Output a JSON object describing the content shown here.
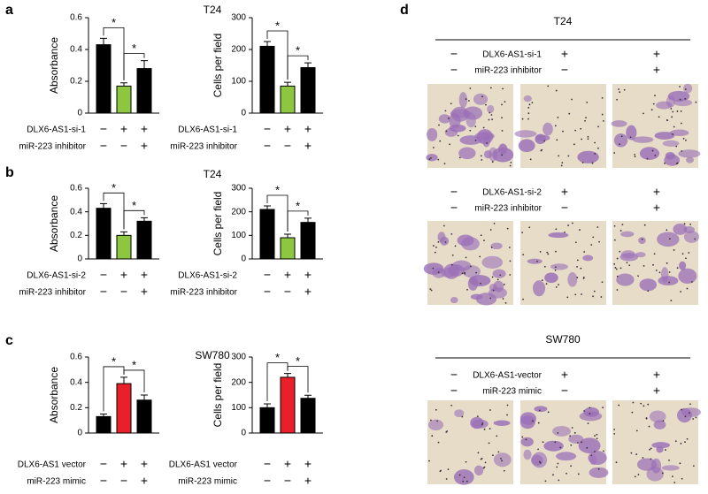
{
  "panel_labels": [
    "a",
    "b",
    "c",
    "d"
  ],
  "chart_data": [
    {
      "type": "bar",
      "title": "T24",
      "ylabel": "Absorbance",
      "ylim": [
        0,
        0.6
      ],
      "yticks": [
        0,
        0.2,
        0.4,
        0.6
      ],
      "values": [
        0.43,
        0.17,
        0.28
      ],
      "errors": [
        0.04,
        0.02,
        0.05
      ],
      "colors": [
        "#000000",
        "#8dc63f",
        "#000000"
      ],
      "annotations": [
        "*",
        "*"
      ],
      "conditions": [
        {
          "name": "DLX6-AS1-si-1",
          "signs": [
            "−",
            "+",
            "+"
          ]
        },
        {
          "name": "miR-223 inhibitor",
          "signs": [
            "−",
            "−",
            "+"
          ]
        }
      ]
    },
    {
      "type": "bar",
      "ylabel": "Cells per field",
      "ylim": [
        0,
        300
      ],
      "yticks": [
        0,
        100,
        200,
        300
      ],
      "values": [
        210,
        85,
        143
      ],
      "errors": [
        15,
        12,
        15
      ],
      "colors": [
        "#000000",
        "#8dc63f",
        "#000000"
      ],
      "annotations": [
        "*",
        "*"
      ],
      "conditions": [
        {
          "name": "DLX6-AS1-si-1",
          "signs": [
            "−",
            "+",
            "+"
          ]
        },
        {
          "name": "miR-223 inhibitor",
          "signs": [
            "−",
            "−",
            "+"
          ]
        }
      ]
    },
    {
      "type": "bar",
      "title": "T24",
      "ylabel": "Absorbance",
      "ylim": [
        0,
        0.6
      ],
      "yticks": [
        0,
        0.2,
        0.4,
        0.6
      ],
      "values": [
        0.43,
        0.2,
        0.32
      ],
      "errors": [
        0.04,
        0.03,
        0.03
      ],
      "colors": [
        "#000000",
        "#8dc63f",
        "#000000"
      ],
      "annotations": [
        "*",
        "*"
      ],
      "conditions": [
        {
          "name": "DLX6-AS1-si-2",
          "signs": [
            "−",
            "+",
            "+"
          ]
        },
        {
          "name": "miR-223 inhibitor",
          "signs": [
            "−",
            "−",
            "+"
          ]
        }
      ]
    },
    {
      "type": "bar",
      "ylabel": "Cells per field",
      "ylim": [
        0,
        300
      ],
      "yticks": [
        0,
        100,
        200,
        300
      ],
      "values": [
        210,
        90,
        155
      ],
      "errors": [
        15,
        15,
        18
      ],
      "colors": [
        "#000000",
        "#8dc63f",
        "#000000"
      ],
      "annotations": [
        "*",
        "*"
      ],
      "conditions": [
        {
          "name": "DLX6-AS1-si-2",
          "signs": [
            "−",
            "+",
            "+"
          ]
        },
        {
          "name": "miR-223 inhibitor",
          "signs": [
            "−",
            "−",
            "+"
          ]
        }
      ]
    },
    {
      "type": "bar",
      "title": "SW780",
      "ylabel": "Absorbance",
      "ylim": [
        0,
        0.6
      ],
      "yticks": [
        0,
        0.2,
        0.4,
        0.6
      ],
      "values": [
        0.13,
        0.39,
        0.26
      ],
      "errors": [
        0.02,
        0.05,
        0.04
      ],
      "colors": [
        "#000000",
        "#e8202a",
        "#000000"
      ],
      "annotations": [
        "*",
        "*"
      ],
      "conditions": [
        {
          "name": "DLX6-AS1 vector",
          "signs": [
            "−",
            "+",
            "+"
          ]
        },
        {
          "name": "miR-223 mimic",
          "signs": [
            "−",
            "−",
            "+"
          ]
        }
      ]
    },
    {
      "type": "bar",
      "ylabel": "Cells per field",
      "ylim": [
        0,
        300
      ],
      "yticks": [
        0,
        100,
        200,
        300
      ],
      "values": [
        100,
        220,
        137
      ],
      "errors": [
        15,
        15,
        12
      ],
      "colors": [
        "#000000",
        "#e8202a",
        "#000000"
      ],
      "annotations": [
        "*",
        "*"
      ],
      "conditions": [
        {
          "name": "DLX6-AS1 vector",
          "signs": [
            "−",
            "+",
            "+"
          ]
        },
        {
          "name": "miR-223 mimic",
          "signs": [
            "−",
            "−",
            "+"
          ]
        }
      ]
    }
  ],
  "panel_d": {
    "groups": [
      {
        "title": "T24",
        "conditions": [
          {
            "name": "DLX6-AS1-si-1",
            "signs": [
              "−",
              "+",
              "+"
            ]
          },
          {
            "name": "miR-223 inhibitor",
            "signs": [
              "−",
              "−",
              "+"
            ]
          }
        ]
      },
      {
        "conditions": [
          {
            "name": "DLX6-AS1-si-2",
            "signs": [
              "−",
              "+",
              "+"
            ]
          },
          {
            "name": "miR-223 inhibitor",
            "signs": [
              "−",
              "−",
              "+"
            ]
          }
        ]
      },
      {
        "title": "SW780",
        "conditions": [
          {
            "name": "DLX6-AS1-vector",
            "signs": [
              "−",
              "+",
              "+"
            ]
          },
          {
            "name": "miR-223 mimic",
            "signs": [
              "−",
              "−",
              "+"
            ]
          }
        ]
      }
    ]
  }
}
